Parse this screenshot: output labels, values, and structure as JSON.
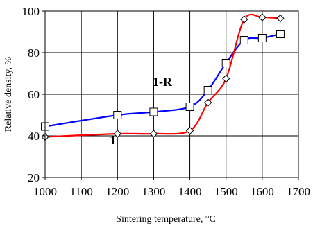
{
  "chart_data": {
    "type": "line",
    "xlabel": "Sintering temperature, °C",
    "ylabel": "Relative density, %",
    "xlim": [
      1000,
      1700
    ],
    "ylim": [
      20,
      100
    ],
    "x_ticks": [
      1000,
      1100,
      1200,
      1300,
      1400,
      1500,
      1600,
      1700
    ],
    "y_ticks": [
      20,
      40,
      60,
      80,
      100
    ],
    "grid": true,
    "series": [
      {
        "name": "1-R",
        "color": "#0000ff",
        "marker": "square",
        "x": [
          1000,
          1200,
          1300,
          1400,
          1450,
          1500,
          1550,
          1600,
          1650
        ],
        "y": [
          44.5,
          50,
          51.5,
          54,
          62,
          75,
          86,
          87,
          89
        ]
      },
      {
        "name": "1",
        "color": "#ff0000",
        "marker": "diamond",
        "x": [
          1000,
          1200,
          1300,
          1400,
          1450,
          1500,
          1550,
          1600,
          1650
        ],
        "y": [
          39.5,
          41,
          41,
          42.5,
          56,
          67.5,
          96,
          97,
          96.5
        ]
      }
    ]
  }
}
